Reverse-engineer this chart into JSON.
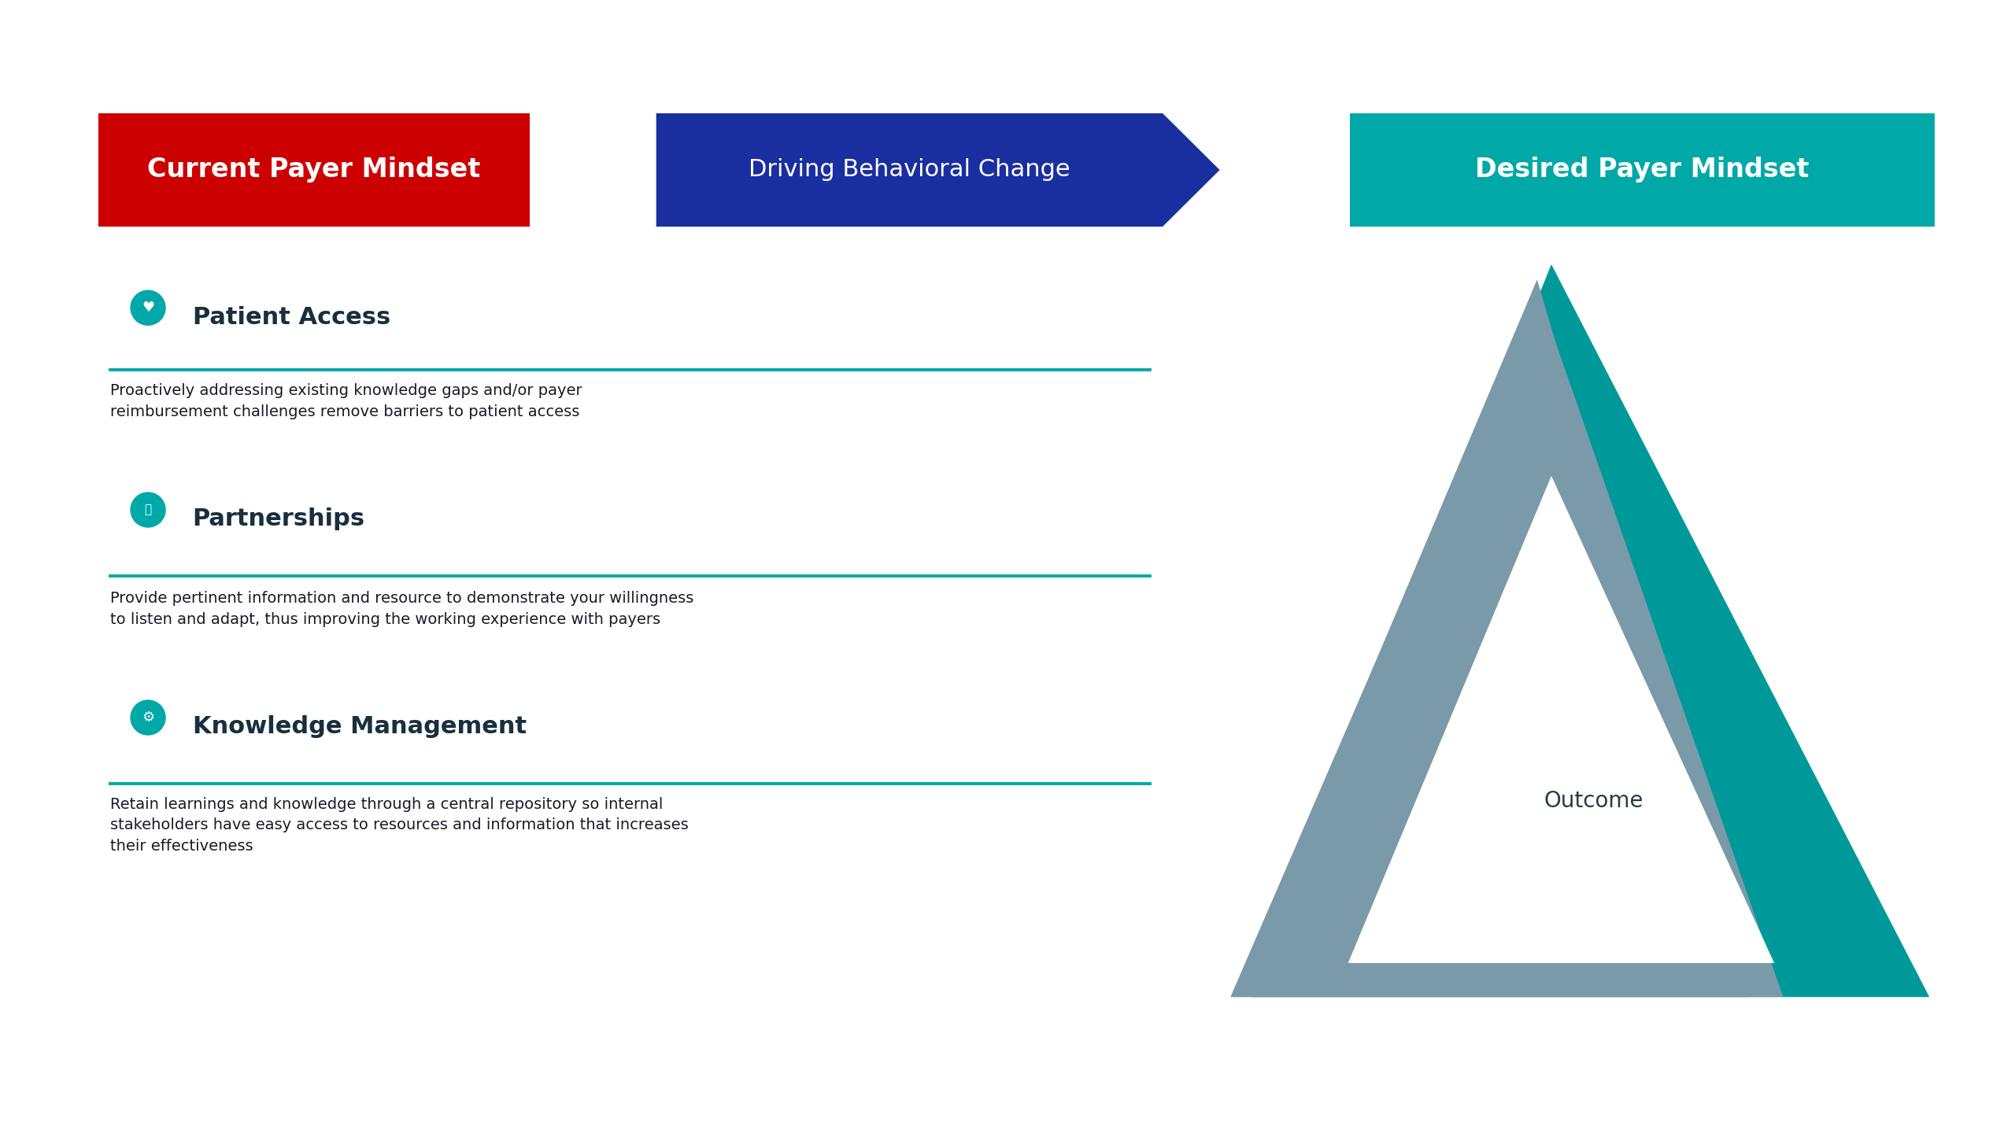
{
  "bg_color": "#ffffff",
  "title_left": "Current Payer Mindset",
  "title_left_bg": "#cc0000",
  "title_left_color": "#ffffff",
  "title_middle": "Driving Behavioral Change",
  "title_middle_bg": "#1a2f9f",
  "title_middle_color": "#ffffff",
  "title_right": "Desired Payer Mindset",
  "title_right_bg": "#00a8a8",
  "title_right_color": "#ffffff",
  "sections": [
    {
      "title": "Patient Access",
      "title_color": "#1a2f3d",
      "icon_color": "#00a8a8",
      "line_color": "#00a8a8",
      "body": "Proactively addressing existing knowledge gaps and/or payer\nreimbursement challenges remove barriers to patient access"
    },
    {
      "title": "Partnerships",
      "title_color": "#1a2f3d",
      "icon_color": "#00a8a8",
      "line_color": "#00a8a8",
      "body": "Provide pertinent information and resource to demonstrate your willingness\nto listen and adapt, thus improving the working experience with payers"
    },
    {
      "title": "Knowledge Management",
      "title_color": "#1a2f3d",
      "icon_color": "#00a8a8",
      "line_color": "#00a8a8",
      "body": "Retain learnings and knowledge through a central repository so internal\nstakeholders have easy access to resources and information that increases\ntheir effectiveness"
    }
  ],
  "triangle_outer_color": "#009999",
  "triangle_mid_color": "#7a9aaa",
  "triangle_inner_color": "#ffffff",
  "triangle_inner_text": "Outcome",
  "triangle_inner_text_color": "#2a3a4a",
  "body_color": "#1a1a2a",
  "body_fontsize": 11.5,
  "title_fontsize": 18,
  "section_title_fontsize": 17,
  "header_fontsize": 18
}
